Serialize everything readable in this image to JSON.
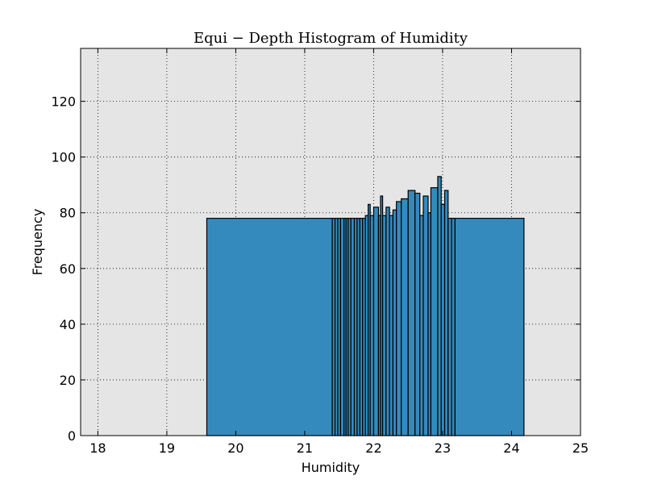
{
  "chart_data": {
    "type": "bar",
    "title": "Equi − Depth Histogram of Humidity",
    "xlabel": "Humidity",
    "ylabel": "Frequency",
    "xlim": [
      17.75,
      25
    ],
    "ylim": [
      0,
      139
    ],
    "xticks": [
      18,
      19,
      20,
      21,
      22,
      23,
      24,
      25
    ],
    "yticks": [
      0,
      20,
      40,
      60,
      80,
      100,
      120
    ],
    "grid": true,
    "bar_color": "#348ABD",
    "plot_background": "#E5E5E5",
    "bins": [
      {
        "x0": 19.58,
        "x1": 21.4,
        "value": 78
      },
      {
        "x0": 21.4,
        "x1": 21.44,
        "value": 78
      },
      {
        "x0": 21.44,
        "x1": 21.48,
        "value": 78
      },
      {
        "x0": 21.48,
        "x1": 21.52,
        "value": 78
      },
      {
        "x0": 21.52,
        "x1": 21.57,
        "value": 78
      },
      {
        "x0": 21.57,
        "x1": 21.6,
        "value": 78
      },
      {
        "x0": 21.6,
        "x1": 21.63,
        "value": 78
      },
      {
        "x0": 21.63,
        "x1": 21.67,
        "value": 78
      },
      {
        "x0": 21.67,
        "x1": 21.72,
        "value": 78
      },
      {
        "x0": 21.72,
        "x1": 21.76,
        "value": 78
      },
      {
        "x0": 21.76,
        "x1": 21.8,
        "value": 78
      },
      {
        "x0": 21.8,
        "x1": 21.84,
        "value": 78
      },
      {
        "x0": 21.84,
        "x1": 21.88,
        "value": 78
      },
      {
        "x0": 21.88,
        "x1": 21.92,
        "value": 79
      },
      {
        "x0": 21.92,
        "x1": 21.95,
        "value": 83
      },
      {
        "x0": 21.95,
        "x1": 22.0,
        "value": 79
      },
      {
        "x0": 22.0,
        "x1": 22.07,
        "value": 82
      },
      {
        "x0": 22.07,
        "x1": 22.1,
        "value": 79
      },
      {
        "x0": 22.1,
        "x1": 22.13,
        "value": 86
      },
      {
        "x0": 22.13,
        "x1": 22.18,
        "value": 79
      },
      {
        "x0": 22.18,
        "x1": 22.23,
        "value": 82
      },
      {
        "x0": 22.23,
        "x1": 22.28,
        "value": 79
      },
      {
        "x0": 22.28,
        "x1": 22.33,
        "value": 81
      },
      {
        "x0": 22.33,
        "x1": 22.4,
        "value": 84
      },
      {
        "x0": 22.4,
        "x1": 22.5,
        "value": 85
      },
      {
        "x0": 22.5,
        "x1": 22.6,
        "value": 88
      },
      {
        "x0": 22.6,
        "x1": 22.67,
        "value": 87
      },
      {
        "x0": 22.67,
        "x1": 22.72,
        "value": 79
      },
      {
        "x0": 22.72,
        "x1": 22.79,
        "value": 86
      },
      {
        "x0": 22.79,
        "x1": 22.83,
        "value": 80
      },
      {
        "x0": 22.83,
        "x1": 22.93,
        "value": 89
      },
      {
        "x0": 22.93,
        "x1": 22.98,
        "value": 93
      },
      {
        "x0": 22.98,
        "x1": 23.03,
        "value": 83
      },
      {
        "x0": 23.03,
        "x1": 23.08,
        "value": 88
      },
      {
        "x0": 23.08,
        "x1": 23.13,
        "value": 78
      },
      {
        "x0": 23.13,
        "x1": 23.18,
        "value": 78
      },
      {
        "x0": 23.18,
        "x1": 24.18,
        "value": 78
      }
    ]
  }
}
